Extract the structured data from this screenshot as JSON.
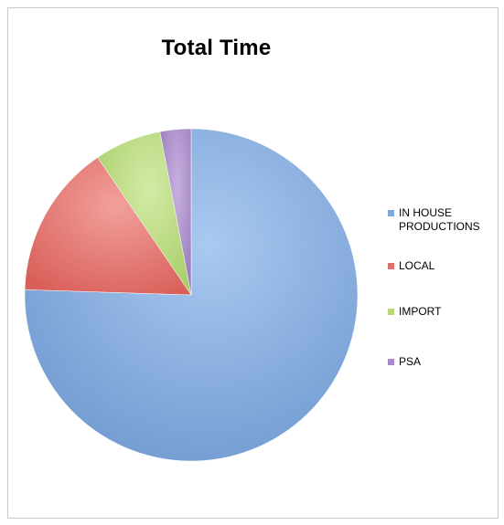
{
  "chart_data": {
    "type": "pie",
    "title": "Total Time",
    "categories": [
      "IN HOUSE PRODUCTIONS",
      "LOCAL",
      "IMPORT",
      "PSA"
    ],
    "values": [
      75.5,
      15.0,
      6.5,
      3.0
    ],
    "colors": [
      "#7FA8DB",
      "#E0706B",
      "#B8D97A",
      "#A98BC7"
    ],
    "start_angle_deg": 0,
    "direction": "clockwise",
    "legend_position": "right"
  }
}
